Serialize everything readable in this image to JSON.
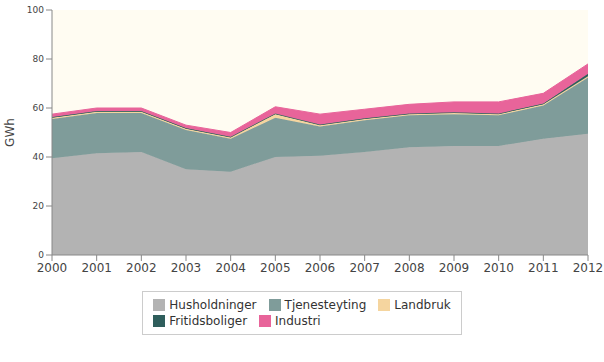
{
  "chart_data": {
    "type": "area",
    "stacked": true,
    "grid": false,
    "legend": "bottom",
    "y_label": "GWh",
    "categories": [
      "2000",
      "2001",
      "2002",
      "2003",
      "2004",
      "2005",
      "2006",
      "2007",
      "2008",
      "2009",
      "2010",
      "2011",
      "2012"
    ],
    "ylim": [
      0,
      100
    ],
    "yticks": [
      0,
      20,
      40,
      60,
      80,
      100
    ],
    "series": [
      {
        "name": "Husholdninger",
        "color": "#b3b3b3",
        "values": [
          39.5,
          41.5,
          42,
          35,
          34,
          40,
          40.5,
          42,
          44,
          44.5,
          44.5,
          47.5,
          49.5
        ]
      },
      {
        "name": "Tjenesteyting",
        "color": "#7f9c9a",
        "values": [
          16,
          16.5,
          16,
          16,
          13.5,
          16,
          12,
          13,
          13,
          13,
          12.5,
          13.5,
          23
        ]
      },
      {
        "name": "Landbruk",
        "color": "#f5d59f",
        "values": [
          0.5,
          0.5,
          0.5,
          0.5,
          0.5,
          1.5,
          0.5,
          0.5,
          0.5,
          0.5,
          0.5,
          0.5,
          0.5
        ]
      },
      {
        "name": "Fritidsboliger",
        "color": "#2f5e5c",
        "values": [
          0.3,
          0.3,
          0.3,
          0.3,
          0.3,
          0.3,
          0.3,
          0.3,
          0.3,
          0.3,
          0.3,
          0.3,
          1
        ]
      },
      {
        "name": "Industri",
        "color": "#e8649a",
        "values": [
          1.2,
          1.2,
          1.2,
          1.2,
          1.7,
          2.7,
          4.2,
          3.7,
          3.7,
          4.2,
          4.7,
          4.2,
          4
        ]
      }
    ]
  }
}
